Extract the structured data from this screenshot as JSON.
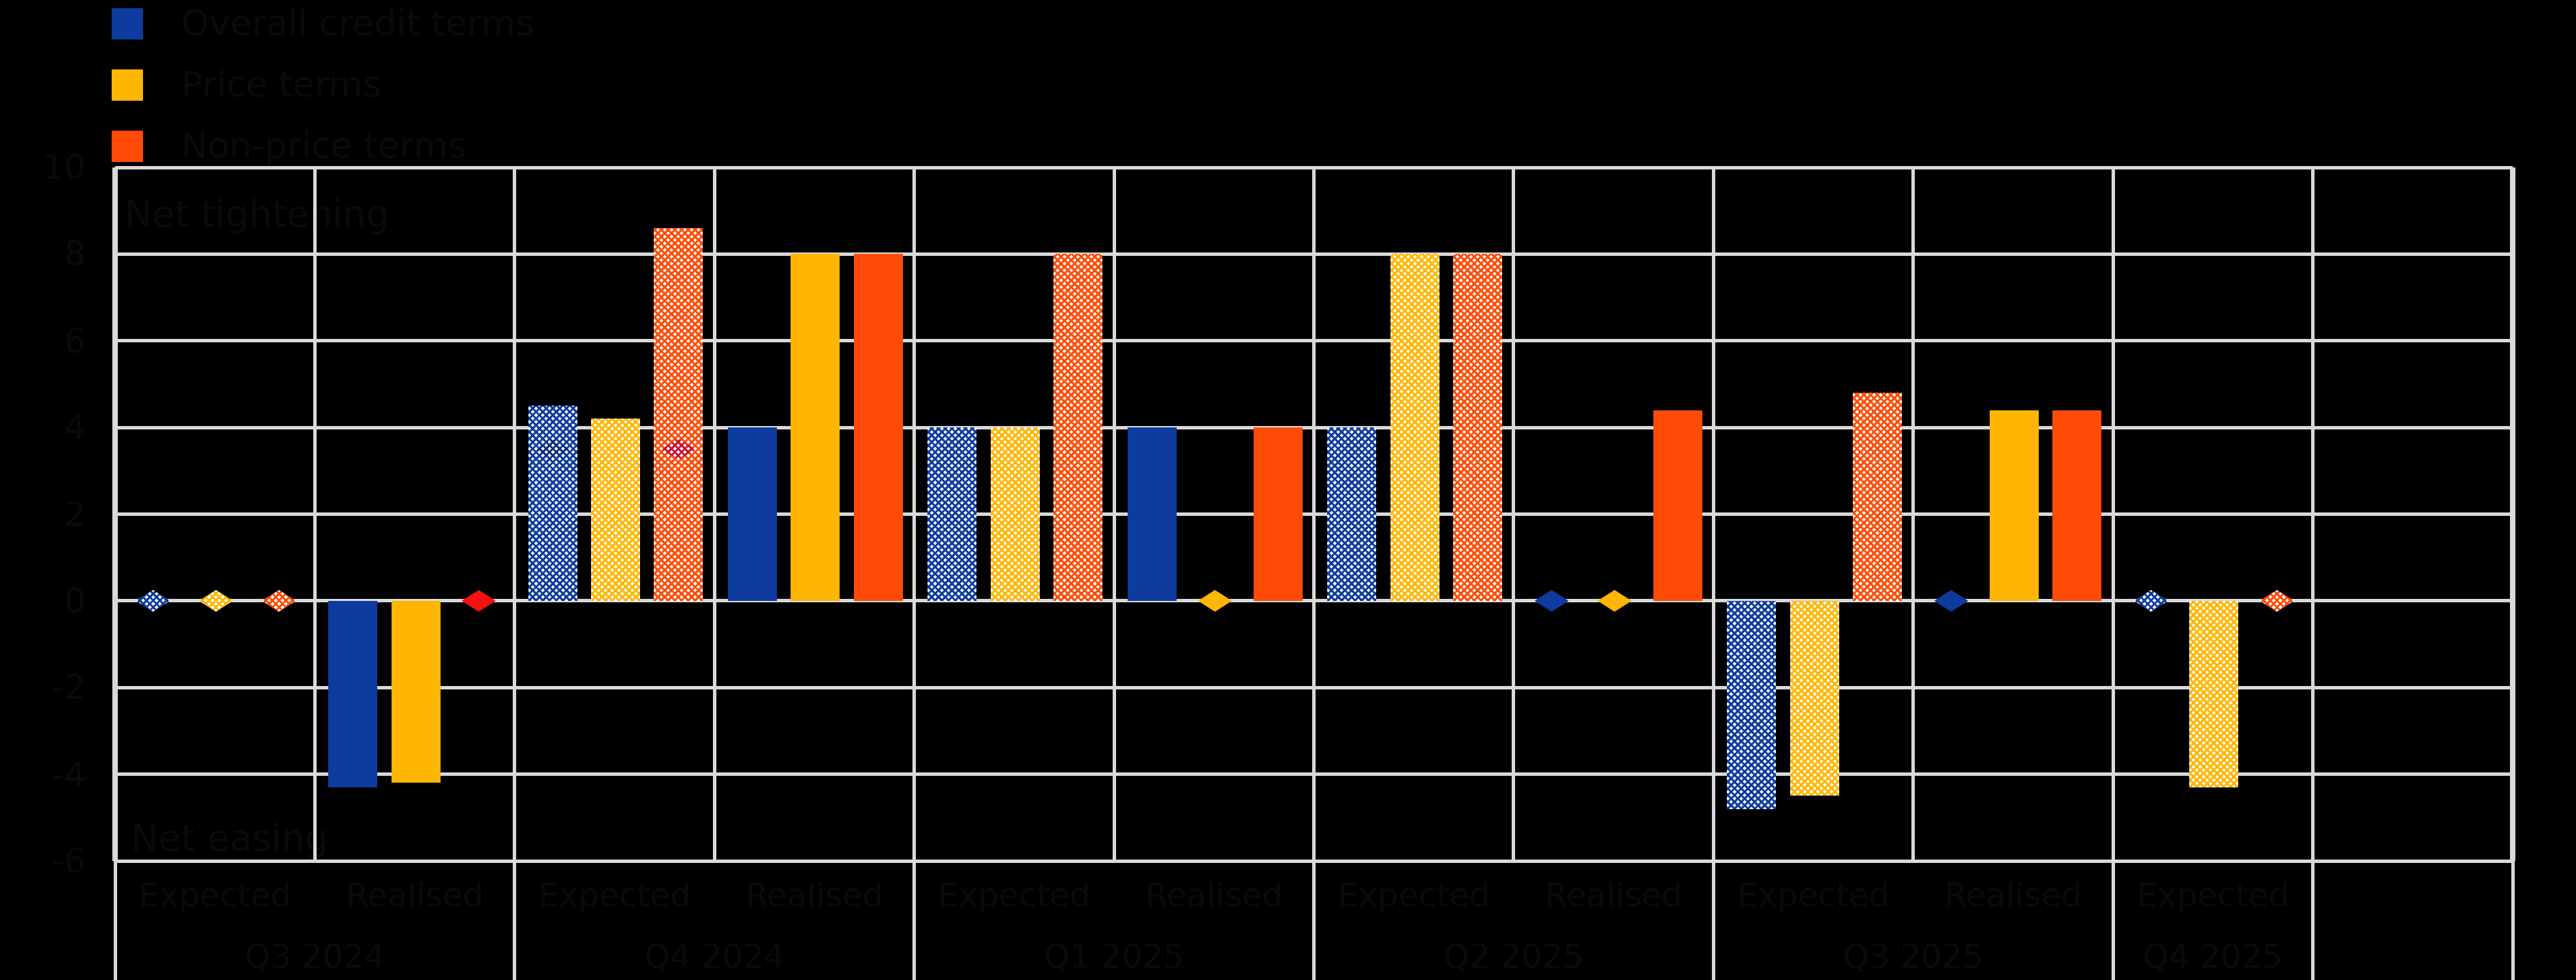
{
  "colors": {
    "background": "#000000",
    "grid": "#d9d9d9",
    "text": "#0a0a0a",
    "series": [
      "#0d3b9e",
      "#ffb600",
      "#ff4b05"
    ],
    "marker_overrides": {
      "red_bright": "#f80f0f",
      "crimson": "#c8102e",
      "blue_dark": "#0a2d73"
    }
  },
  "legend": {
    "items": [
      {
        "label": "Overall credit terms",
        "color": "#0d3b9e",
        "icon": "blue-swatch"
      },
      {
        "label": "Price terms",
        "color": "#ffb600",
        "icon": "yellow-swatch"
      },
      {
        "label": "Non-price terms",
        "color": "#ff4b05",
        "icon": "orange-swatch"
      }
    ]
  },
  "chart_data": {
    "type": "bar",
    "title": "",
    "xlabel": "",
    "ylabel": "",
    "ylim": [
      -6,
      10
    ],
    "yticks": [
      10,
      8,
      6,
      4,
      2,
      0,
      -2,
      -4,
      -6
    ],
    "grid": true,
    "legend_position": "top-left",
    "annotations": {
      "top_left": "Net tightening",
      "bottom_left": "Net easing"
    },
    "series": [
      "Overall credit terms",
      "Price terms",
      "Non-price terms"
    ],
    "subcolumn_labels": [
      "Expected",
      "Realised"
    ],
    "groups": [
      {
        "quarter": "Q3 2024",
        "subcolumns": [
          {
            "label": "Expected",
            "style": "hatched",
            "values": [
              null,
              null,
              null
            ],
            "markers": [
              {
                "series": 0,
                "value": 0,
                "style": "hatched"
              },
              {
                "series": 1,
                "value": 0,
                "style": "hatched"
              },
              {
                "series": 2,
                "value": 0,
                "style": "hatched"
              }
            ]
          },
          {
            "label": "Realised",
            "style": "solid",
            "values": [
              -4.3,
              -4.2,
              null
            ],
            "markers": [
              {
                "series": 2,
                "value": 0,
                "style": "solid",
                "color": "red_bright"
              }
            ]
          }
        ]
      },
      {
        "quarter": "Q4 2024",
        "subcolumns": [
          {
            "label": "Expected",
            "style": "hatched",
            "values": [
              4.5,
              4.2,
              8.6
            ],
            "markers": [
              {
                "series": 0,
                "value": 3.5,
                "style": "hatched",
                "color": "blue_dark"
              },
              {
                "series": 2,
                "value": 3.5,
                "style": "hatched",
                "color": "crimson"
              }
            ]
          },
          {
            "label": "Realised",
            "style": "solid",
            "values": [
              4.0,
              8.0,
              8.0
            ],
            "markers": []
          }
        ]
      },
      {
        "quarter": "Q1 2025",
        "subcolumns": [
          {
            "label": "Expected",
            "style": "hatched",
            "values": [
              4.0,
              4.0,
              8.0
            ],
            "markers": []
          },
          {
            "label": "Realised",
            "style": "solid",
            "values": [
              4.0,
              null,
              4.0
            ],
            "markers": [
              {
                "series": 1,
                "value": 0,
                "style": "solid"
              }
            ]
          }
        ]
      },
      {
        "quarter": "Q2 2025",
        "subcolumns": [
          {
            "label": "Expected",
            "style": "hatched",
            "values": [
              4.0,
              8.0,
              8.0
            ],
            "markers": []
          },
          {
            "label": "Realised",
            "style": "solid",
            "values": [
              null,
              null,
              4.4
            ],
            "markers": [
              {
                "series": 0,
                "value": 0,
                "style": "solid"
              },
              {
                "series": 1,
                "value": 0,
                "style": "solid"
              }
            ]
          }
        ]
      },
      {
        "quarter": "Q3 2025",
        "subcolumns": [
          {
            "label": "Expected",
            "style": "hatched",
            "values": [
              -4.8,
              -4.5,
              4.8
            ],
            "markers": []
          },
          {
            "label": "Realised",
            "style": "solid",
            "values": [
              null,
              4.4,
              4.4
            ],
            "markers": [
              {
                "series": 0,
                "value": 0,
                "style": "solid"
              }
            ]
          }
        ]
      },
      {
        "quarter": "Q4 2025",
        "subcolumns": [
          {
            "label": "Expected",
            "style": "hatched",
            "values": [
              null,
              -4.3,
              null
            ],
            "markers": [
              {
                "series": 0,
                "value": 0,
                "style": "hatched"
              },
              {
                "series": 2,
                "value": 0,
                "style": "hatched"
              }
            ]
          }
        ]
      },
      {
        "quarter": "",
        "subcolumns": [
          {
            "label": "",
            "style": "none",
            "values": [
              null,
              null,
              null
            ],
            "markers": []
          }
        ]
      }
    ]
  },
  "axis": {
    "y_tick_labels": [
      "10",
      "8",
      "6",
      "4",
      "2",
      "0",
      "-2",
      "-4",
      "-6"
    ]
  }
}
